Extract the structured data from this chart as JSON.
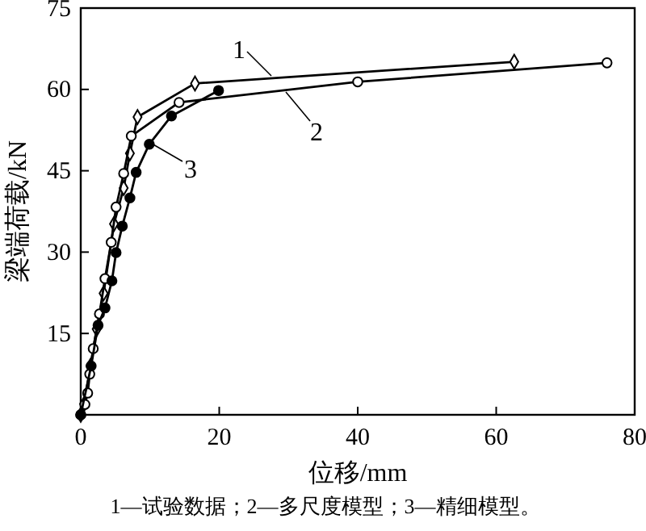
{
  "chart_data": {
    "type": "line",
    "xlabel": "位移/mm",
    "ylabel": "梁端荷载/kN",
    "xlim": [
      0,
      80
    ],
    "xticks": [
      0,
      20,
      40,
      60,
      80
    ],
    "ylim": [
      0,
      75
    ],
    "yticks": [
      {
        "value": 0,
        "label": null
      },
      15,
      30,
      45,
      60,
      75
    ],
    "grid": false,
    "legend": "top left",
    "annotations": [
      "1—试验数据；2—多尺度模型；3—精细模型。"
    ],
    "series": [
      {
        "name": "1",
        "color": "#000000",
        "marker": "diamond",
        "x": [
          0,
          0.5,
          1.4,
          2.3,
          3.3,
          4.8,
          6.2,
          7.1,
          8.2,
          16.5,
          62.6
        ],
        "values": [
          0,
          2,
          9,
          15.8,
          22.4,
          35.2,
          41.8,
          48.2,
          54.9,
          61.1,
          65.1
        ]
      },
      {
        "name": "2",
        "color": "#000000",
        "marker": "circle",
        "x": [
          0,
          0.6,
          1,
          1.3,
          1.8,
          2.7,
          3.5,
          4.4,
          5.1,
          6.2,
          7.3,
          14.2,
          40,
          76
        ],
        "values": [
          0,
          1.9,
          4,
          7.5,
          12.2,
          18.6,
          25.1,
          31.8,
          38.3,
          44.5,
          51.4,
          57.6,
          61.4,
          64.9
        ]
      },
      {
        "name": "3",
        "color": "#000000",
        "marker": "circle",
        "x": [
          0,
          1.5,
          2.5,
          3.5,
          4.5,
          5.1,
          6,
          7.1,
          8,
          9.9,
          13.1,
          19.9
        ],
        "values": [
          0,
          9,
          16.5,
          19.7,
          24.7,
          29.9,
          34.8,
          40,
          44.7,
          49.9,
          55.1,
          59.8
        ]
      }
    ]
  }
}
